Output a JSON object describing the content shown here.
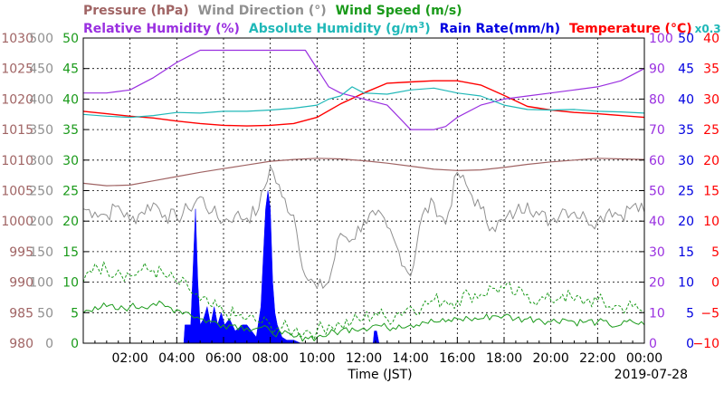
{
  "chart_data": {
    "type": "line",
    "title": "",
    "date": "2019-07-28",
    "xlabel": "Time (JST)",
    "xlim": [
      0,
      24
    ],
    "x_ticks": [
      {
        "v": 2,
        "label": "02:00"
      },
      {
        "v": 4,
        "label": "04:00"
      },
      {
        "v": 6,
        "label": "06:00"
      },
      {
        "v": 8,
        "label": "08:00"
      },
      {
        "v": 10,
        "label": "10:00"
      },
      {
        "v": 12,
        "label": "12:00"
      },
      {
        "v": 14,
        "label": "14:00"
      },
      {
        "v": 16,
        "label": "16:00"
      },
      {
        "v": 18,
        "label": "18:00"
      },
      {
        "v": 20,
        "label": "20:00"
      },
      {
        "v": 22,
        "label": "22:00"
      },
      {
        "v": 24,
        "label": "00:00"
      }
    ],
    "grid": true,
    "legend": {
      "row1": [
        {
          "text": "Pressure (hPa)",
          "color": "#a06464"
        },
        {
          "text": "Wind Direction (°)",
          "color": "#909090"
        },
        {
          "text": "Wind Speed (m/s)",
          "color": "#1a9a1a"
        }
      ],
      "row2": [
        {
          "text": "Relative Humidity (%)",
          "color": "#9a30e0"
        },
        {
          "text": "Absolute Humidity (g/m",
          "sup": "3",
          "close": ")",
          "color": "#20b8b8"
        },
        {
          "text": "Rain Rate(mm/h)",
          "color": "#0000e0"
        },
        {
          "text": "Temperature (°C)",
          "color": "#ff0000"
        },
        {
          "text": "x0.3",
          "color": "#20b8b8",
          "small": true
        }
      ]
    },
    "axes": {
      "pressure": {
        "color": "#a06464",
        "range": [
          980,
          1030
        ],
        "ticks": [
          "980",
          "985",
          "990",
          "995",
          "1000",
          "1005",
          "1010",
          "1015",
          "1020",
          "1025",
          "1030"
        ]
      },
      "wind_direction": {
        "color": "#909090",
        "range": [
          0,
          500
        ],
        "ticks": [
          "0",
          "50",
          "100",
          "150",
          "200",
          "250",
          "300",
          "350",
          "400",
          "450",
          "500"
        ]
      },
      "wind_speed": {
        "color": "#1a9a1a",
        "range": [
          0,
          50
        ],
        "ticks": [
          "0",
          "5",
          "10",
          "15",
          "20",
          "25",
          "30",
          "35",
          "40",
          "45",
          "50"
        ]
      },
      "relative_humidity": {
        "color": "#9a30e0",
        "range": [
          0,
          100
        ],
        "ticks": [
          "0",
          "10",
          "20",
          "30",
          "40",
          "50",
          "60",
          "70",
          "80",
          "90",
          "100"
        ]
      },
      "rain_rate": {
        "color": "#0000e0",
        "range": [
          0,
          50
        ],
        "ticks": [
          "0",
          "5",
          "10",
          "15",
          "20",
          "25",
          "30",
          "35",
          "40",
          "45",
          "50"
        ]
      },
      "temperature": {
        "color": "#ff0000",
        "range": [
          -10,
          40
        ],
        "ticks": [
          "−10",
          "−5",
          "0",
          "5",
          "10",
          "15",
          "20",
          "25",
          "30",
          "35",
          "40"
        ]
      }
    },
    "series": [
      {
        "key": "pressure",
        "color": "#a06464",
        "width": 1.2,
        "axis": "pressure",
        "x": [
          0,
          1,
          2,
          3,
          4,
          5,
          6,
          7,
          8,
          9,
          10,
          11,
          12,
          13,
          14,
          15,
          16,
          17,
          18,
          19,
          20,
          21,
          22,
          23,
          24
        ],
        "y": [
          1006.2,
          1005.8,
          1005.9,
          1006.6,
          1007.3,
          1008,
          1008.6,
          1009.2,
          1009.8,
          1010.1,
          1010.3,
          1010.2,
          1009.9,
          1009.5,
          1009,
          1008.5,
          1008.3,
          1008.4,
          1008.8,
          1009.3,
          1009.7,
          1010,
          1010.3,
          1010.2,
          1010.1
        ]
      },
      {
        "key": "temperature",
        "color": "#ff0000",
        "width": 1.4,
        "axis": "temperature",
        "x": [
          0,
          1,
          2,
          3,
          4,
          5,
          6,
          7,
          8,
          9,
          10,
          11,
          12,
          13,
          14,
          15,
          16,
          17,
          18,
          19,
          20,
          21,
          22,
          23,
          24
        ],
        "y": [
          28,
          27.6,
          27.2,
          26.9,
          26.4,
          26,
          25.7,
          25.6,
          25.7,
          26,
          27,
          29.2,
          31,
          32.6,
          32.8,
          33,
          33,
          32.3,
          30.6,
          28.8,
          28.2,
          27.8,
          27.6,
          27.3,
          27
        ]
      },
      {
        "key": "relative_humidity",
        "color": "#9a30e0",
        "width": 1.2,
        "axis": "relative_humidity",
        "x": [
          0,
          1,
          2,
          3,
          4,
          4.5,
          5,
          6,
          7,
          8,
          8.5,
          9,
          9.5,
          10,
          10.5,
          11,
          12,
          13,
          13.5,
          14,
          15,
          15.5,
          16,
          17,
          18,
          19,
          20,
          21,
          22,
          23,
          24
        ],
        "y": [
          82,
          82,
          83,
          87,
          92,
          94,
          96,
          96,
          96,
          96,
          96,
          96,
          96,
          90,
          84,
          82,
          80,
          78,
          74,
          70,
          70,
          71,
          74,
          78,
          80,
          81,
          82,
          83,
          84,
          86,
          90
        ]
      },
      {
        "key": "absolute_humidity",
        "color": "#20b8b8",
        "width": 1.2,
        "axis": "wind_speed",
        "x": [
          0,
          1,
          2,
          3,
          4,
          5,
          6,
          7,
          8,
          9,
          10,
          10.5,
          11,
          11.5,
          12,
          13,
          14,
          15,
          16,
          17,
          18,
          19,
          20,
          21,
          22,
          23,
          24
        ],
        "y": [
          37.5,
          37.2,
          37,
          37.3,
          37.8,
          37.7,
          38,
          38,
          38.2,
          38.5,
          39,
          40,
          40.5,
          42,
          41,
          40.8,
          41.5,
          41.8,
          41,
          40.5,
          39,
          38.3,
          38.2,
          38.3,
          38,
          37.9,
          37.7
        ]
      },
      {
        "key": "wind_direction",
        "color": "#909090",
        "width": 1.0,
        "axis": "wind_direction",
        "jitter": 14,
        "x": [
          0,
          0.5,
          1,
          1.5,
          2,
          2.5,
          3,
          3.5,
          4,
          4.5,
          5,
          5.5,
          6,
          6.5,
          7,
          7.5,
          8,
          8.5,
          9,
          9.5,
          10,
          10.5,
          11,
          11.5,
          12,
          12.5,
          13,
          13.5,
          14,
          14.5,
          15,
          15.5,
          16,
          16.5,
          17,
          17.5,
          18,
          18.5,
          19,
          19.5,
          20,
          20.5,
          21,
          21.5,
          22,
          22.5,
          23,
          23.5,
          24
        ],
        "y": [
          220,
          215,
          210,
          225,
          200,
          215,
          230,
          210,
          205,
          220,
          240,
          215,
          200,
          210,
          205,
          220,
          290,
          240,
          210,
          110,
          90,
          100,
          180,
          170,
          200,
          210,
          190,
          150,
          110,
          210,
          230,
          195,
          280,
          250,
          220,
          190,
          200,
          215,
          230,
          210,
          200,
          220,
          215,
          205,
          200,
          220,
          210,
          225,
          215
        ]
      },
      {
        "key": "wind_speed_gust",
        "color": "#1a9a1a",
        "width": 1.0,
        "dash": "3,2",
        "axis": "wind_speed",
        "jitter": 1.4,
        "x": [
          0,
          0.5,
          1,
          1.5,
          2,
          2.5,
          3,
          3.5,
          4,
          4.5,
          5,
          5.5,
          6,
          6.5,
          7,
          7.5,
          8,
          8.5,
          9,
          9.5,
          10,
          10.5,
          11,
          11.5,
          12,
          12.5,
          13,
          13.5,
          14,
          14.5,
          15,
          15.5,
          16,
          16.5,
          17,
          17.5,
          18,
          18.5,
          19,
          19.5,
          20,
          20.5,
          21,
          21.5,
          22,
          22.5,
          23,
          23.5,
          24
        ],
        "y": [
          10,
          13,
          12,
          12,
          11,
          12,
          12,
          11,
          10,
          9,
          7,
          6,
          5,
          4.5,
          4,
          3.5,
          3,
          2.5,
          2,
          2,
          2,
          3,
          3,
          3.5,
          4,
          5,
          4,
          5,
          6,
          6,
          7,
          7,
          7,
          8,
          8,
          9,
          9,
          8,
          8,
          7,
          7,
          8,
          7,
          7,
          7,
          6,
          6,
          6,
          5
        ]
      },
      {
        "key": "wind_speed",
        "color": "#1a9a1a",
        "width": 1.0,
        "axis": "wind_speed",
        "jitter": 0.7,
        "x": [
          0,
          0.5,
          1,
          1.5,
          2,
          2.5,
          3,
          3.5,
          4,
          4.5,
          5,
          5.5,
          6,
          6.5,
          7,
          7.5,
          8,
          8.5,
          9,
          9.5,
          10,
          10.5,
          11,
          11.5,
          12,
          12.5,
          13,
          13.5,
          14,
          14.5,
          15,
          15.5,
          16,
          16.5,
          17,
          17.5,
          18,
          18.5,
          19,
          19.5,
          20,
          20.5,
          21,
          21.5,
          22,
          22.5,
          23,
          23.5,
          24
        ],
        "y": [
          5,
          6,
          6,
          5.5,
          6,
          6,
          6.5,
          6,
          5.5,
          5,
          4,
          3.5,
          3,
          3,
          2.5,
          2.5,
          2,
          1.5,
          1,
          1,
          1,
          1.5,
          2,
          2.5,
          2.5,
          3,
          2.5,
          3,
          3,
          3.5,
          3.5,
          3.5,
          4,
          4,
          4,
          4.5,
          4.5,
          4,
          4,
          4,
          3.5,
          4,
          3.5,
          3.5,
          3.5,
          3,
          3,
          3.5,
          3
        ]
      }
    ],
    "rain_rate": {
      "color": "#0000ff",
      "axis": "rain_rate",
      "x": [
        0,
        4.3,
        4.35,
        4.6,
        4.8,
        4.9,
        5.0,
        5.15,
        5.3,
        5.45,
        5.6,
        5.75,
        5.9,
        6.05,
        6.25,
        6.5,
        6.8,
        7.0,
        7.2,
        7.4,
        7.6,
        7.8,
        7.9,
        8.0,
        8.1,
        8.2,
        8.3,
        8.5,
        8.7,
        9.0,
        9.3,
        12.4,
        12.45,
        12.55,
        12.65,
        24
      ],
      "y": [
        0,
        0,
        3,
        3,
        22,
        10,
        3,
        4,
        6,
        3,
        6,
        3,
        5,
        3,
        4,
        2,
        3,
        3,
        2,
        1,
        6,
        22,
        25,
        22,
        10,
        5,
        3,
        1,
        0.5,
        0.5,
        0,
        0,
        2,
        2,
        0,
        0
      ]
    }
  }
}
